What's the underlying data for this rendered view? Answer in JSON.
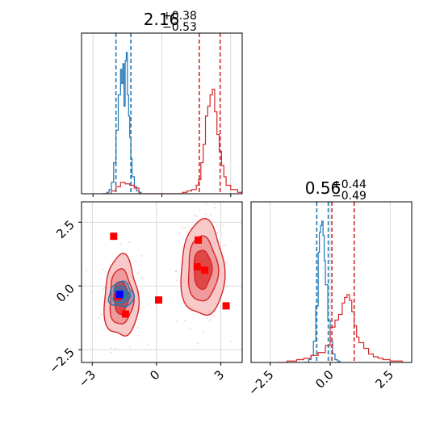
{
  "chart_data": [
    {
      "panel": "x0-marginal",
      "type": "histogram",
      "xlim": [
        -3.5,
        3.5
      ],
      "title": {
        "value": "2.16",
        "plus": "+0.38",
        "minus": "−0.53"
      },
      "series": [
        {
          "name": "",
          "color": "#1f77b4",
          "x": [
            -2.6,
            -2.4,
            -2.3,
            -2.2,
            -2.1,
            -2.0,
            -1.9,
            -1.8,
            -1.75,
            -1.7,
            -1.65,
            -1.6,
            -1.55,
            -1.5,
            -1.45,
            -1.4,
            -1.35,
            -1.3,
            -1.2,
            -1.1,
            -1.0,
            -0.9
          ],
          "density": [
            0.0,
            0.01,
            0.03,
            0.08,
            0.22,
            0.45,
            0.7,
            0.88,
            0.78,
            0.92,
            0.62,
            0.94,
            1.0,
            0.7,
            0.55,
            0.4,
            0.25,
            0.12,
            0.05,
            0.02,
            0.01,
            0.0
          ],
          "quantiles": [
            -2.0,
            -1.35
          ]
        },
        {
          "name": "",
          "color": "#d62728",
          "x": [
            -2.6,
            -2.2,
            -2.0,
            -1.8,
            -1.6,
            -1.4,
            -1.2,
            -1.0,
            0.6,
            0.9,
            1.1,
            1.3,
            1.5,
            1.6,
            1.7,
            1.8,
            1.9,
            2.0,
            2.1,
            2.2,
            2.3,
            2.4,
            2.5,
            2.6,
            2.7,
            2.8,
            3.0,
            3.3,
            3.6
          ],
          "density": [
            0.0,
            0.02,
            0.05,
            0.08,
            0.07,
            0.06,
            0.04,
            0.0,
            0.0,
            0.01,
            0.02,
            0.03,
            0.06,
            0.1,
            0.22,
            0.35,
            0.55,
            0.62,
            0.7,
            0.74,
            0.58,
            0.42,
            0.3,
            0.2,
            0.12,
            0.06,
            0.03,
            0.01,
            0.0
          ],
          "quantiles": [
            1.63,
            2.54
          ]
        }
      ]
    },
    {
      "panel": "joint",
      "type": "scatter-contour",
      "xlim": [
        -3.5,
        4.0
      ],
      "ylim": [
        -3.0,
        3.3
      ],
      "xticks": [
        "−3",
        "0",
        "3"
      ],
      "yticks": [
        "2.5",
        "0.0",
        "−2.5"
      ],
      "clusters": [
        {
          "color": "#1f77b4",
          "center": [
            -1.65,
            -0.35
          ],
          "sigma": [
            0.26,
            0.22
          ]
        },
        {
          "color": "#d62728",
          "center": [
            -1.65,
            -0.45
          ],
          "sigma": [
            0.36,
            0.72
          ]
        },
        {
          "color": "#d62728",
          "center": [
            2.15,
            0.65
          ],
          "sigma": [
            0.46,
            0.85
          ]
        }
      ],
      "markers": [
        {
          "color": "#ff0000",
          "x": -2.0,
          "y": 1.95
        },
        {
          "color": "#ff0000",
          "x": 1.95,
          "y": 1.8
        },
        {
          "color": "#ff0000",
          "x": 1.9,
          "y": 0.75
        },
        {
          "color": "#ff0000",
          "x": 2.25,
          "y": 0.62
        },
        {
          "color": "#ff0000",
          "x": 0.1,
          "y": -0.55
        },
        {
          "color": "#ff0000",
          "x": 3.25,
          "y": -0.78
        },
        {
          "color": "#ff0000",
          "x": -1.45,
          "y": -1.1
        },
        {
          "color": "#ff0000",
          "x": -1.8,
          "y": -0.42
        },
        {
          "color": "#0000ff",
          "x": -1.72,
          "y": -0.33
        }
      ]
    },
    {
      "panel": "x1-marginal",
      "type": "histogram",
      "xlim": [
        -3.3,
        3.4
      ],
      "xticks": [
        "−2.5",
        "0.0",
        "2.5"
      ],
      "title": {
        "value": "0.56",
        "plus": "+0.44",
        "minus": "−0.49"
      },
      "series": [
        {
          "name": "",
          "color": "#1f77b4",
          "x": [
            -1.1,
            -0.9,
            -0.8,
            -0.7,
            -0.6,
            -0.5,
            -0.45,
            -0.4,
            -0.35,
            -0.3,
            -0.25,
            -0.2,
            -0.1,
            0.0,
            0.1,
            0.2,
            0.3,
            0.4
          ],
          "density": [
            0.0,
            0.02,
            0.05,
            0.15,
            0.4,
            0.78,
            0.92,
            0.97,
            1.0,
            0.9,
            0.72,
            0.55,
            0.3,
            0.15,
            0.06,
            0.02,
            0.01,
            0.0
          ],
          "quantiles": [
            -0.56,
            -0.08
          ]
        },
        {
          "name": "",
          "color": "#d62728",
          "x": [
            -2.2,
            -1.8,
            -1.4,
            -1.1,
            -0.8,
            -0.5,
            -0.2,
            0.0,
            0.2,
            0.35,
            0.5,
            0.6,
            0.7,
            0.8,
            0.9,
            1.0,
            1.1,
            1.2,
            1.4,
            1.6,
            1.8,
            2.0,
            2.2,
            2.5,
            2.8,
            3.0
          ],
          "density": [
            0.0,
            0.01,
            0.02,
            0.03,
            0.05,
            0.07,
            0.12,
            0.25,
            0.3,
            0.34,
            0.42,
            0.46,
            0.48,
            0.44,
            0.36,
            0.26,
            0.18,
            0.14,
            0.1,
            0.06,
            0.04,
            0.03,
            0.02,
            0.01,
            0.01,
            0.0
          ],
          "quantiles": [
            0.07,
            1.0
          ]
        }
      ]
    }
  ]
}
